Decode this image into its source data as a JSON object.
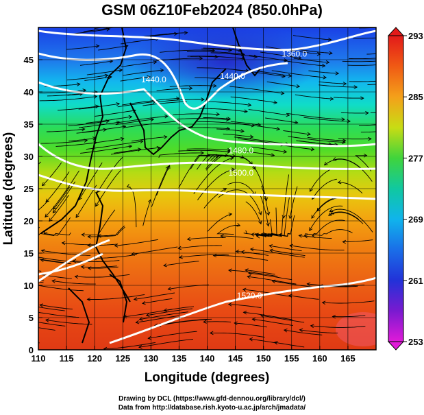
{
  "title": "GSM 06Z10Feb2024 (850.0hPa)",
  "chart_data": {
    "type": "heatmap",
    "variable": "temperature field with streamlines and geopotential height contours",
    "xlabel": "Longitude (degrees)",
    "ylabel": "Latitude (degrees)",
    "xlim": [
      110,
      170
    ],
    "ylim": [
      0,
      50
    ],
    "x_ticks": [
      "110",
      "115",
      "120",
      "125",
      "130",
      "135",
      "140",
      "145",
      "150",
      "155",
      "160",
      "165"
    ],
    "y_ticks": [
      "0",
      "5",
      "10",
      "15",
      "20",
      "25",
      "30",
      "35",
      "40",
      "45"
    ],
    "colorbar": {
      "min": 253,
      "max": 293,
      "tick_labels": [
        "293",
        "285",
        "277",
        "269",
        "261",
        "253"
      ]
    },
    "contour_labels": [
      {
        "text": "1360.0",
        "lon": 155.5,
        "lat": 45.5
      },
      {
        "text": "1440.0",
        "lon": 130.5,
        "lat": 41.5
      },
      {
        "text": "1440.0",
        "lon": 144.5,
        "lat": 42.0
      },
      {
        "text": "1480.0",
        "lon": 146.0,
        "lat": 30.5
      },
      {
        "text": "1500.0",
        "lon": 146.0,
        "lat": 27.0
      },
      {
        "text": "1520.0",
        "lon": 147.5,
        "lat": 8.0
      }
    ],
    "grid": true
  },
  "footer": {
    "line1": "Drawing by DCL (https://www.gfd-dennou.org/library/dcl/)",
    "line2": "Data from http://database.rish.kyoto-u.ac.jp/arch/jmadata/"
  }
}
